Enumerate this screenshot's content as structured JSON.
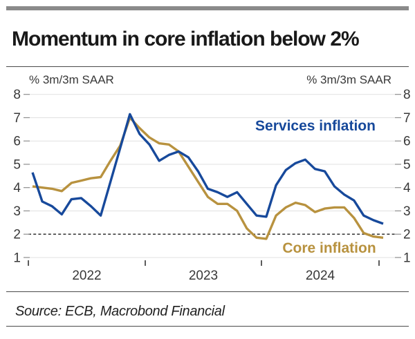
{
  "header": {
    "title": "Momentum in core inflation below 2%"
  },
  "footer": {
    "source": "Source: ECB, Macrobond Financial"
  },
  "colors": {
    "services_blue": "#17499b",
    "core_gold": "#b8923f",
    "gridline": "#e0e0e0",
    "dashed_line": "#1c1c1c",
    "tick_text": "#383838",
    "axis_tick_dash": "#8d8d8d",
    "x_tick": "#333333",
    "top_bar_gray": "#8a8a8a"
  },
  "chart_data": {
    "type": "line",
    "title": "Momentum in core inflation below 2%",
    "unit_label_left": "% 3m/3m SAAR",
    "unit_label_right": "% 3m/3m SAAR",
    "y_ticks": [
      1,
      2,
      3,
      4,
      5,
      6,
      7,
      8
    ],
    "ylim": [
      1,
      8
    ],
    "dashed_reference_y": 2,
    "grid": true,
    "x_tick_years": [
      "2022",
      "2023",
      "2024"
    ],
    "x_months": [
      "2022-01",
      "2022-02",
      "2022-03",
      "2022-04",
      "2022-05",
      "2022-06",
      "2022-07",
      "2022-08",
      "2022-09",
      "2022-10",
      "2022-11",
      "2022-12",
      "2023-01",
      "2023-02",
      "2023-03",
      "2023-04",
      "2023-05",
      "2023-06",
      "2023-07",
      "2023-08",
      "2023-09",
      "2023-10",
      "2023-11",
      "2023-12",
      "2024-01",
      "2024-02",
      "2024-03",
      "2024-04",
      "2024-05",
      "2024-06",
      "2024-07",
      "2024-08",
      "2024-09",
      "2024-10",
      "2024-11",
      "2024-12",
      "2025-01"
    ],
    "series": [
      {
        "name": "Services inflation",
        "color": "#17499b",
        "values": [
          4.65,
          3.4,
          3.2,
          2.85,
          3.5,
          3.55,
          3.2,
          2.8,
          4.25,
          5.7,
          7.15,
          6.3,
          5.85,
          5.15,
          5.4,
          5.55,
          5.3,
          4.7,
          3.95,
          3.8,
          3.6,
          3.8,
          3.3,
          2.8,
          2.75,
          4.1,
          4.75,
          5.05,
          5.2,
          4.8,
          4.7,
          4.05,
          3.7,
          3.45,
          2.8,
          2.6,
          2.45
        ]
      },
      {
        "name": "Core inflation",
        "color": "#b8923f",
        "values": [
          4.05,
          4.0,
          3.95,
          3.85,
          4.2,
          4.3,
          4.4,
          4.45,
          5.15,
          5.8,
          7.0,
          6.55,
          6.15,
          5.9,
          5.85,
          5.55,
          4.9,
          4.25,
          3.6,
          3.3,
          3.3,
          3.0,
          2.25,
          1.85,
          1.8,
          2.8,
          3.15,
          3.35,
          3.25,
          2.95,
          3.1,
          3.15,
          3.15,
          2.7,
          2.05,
          1.9,
          1.85
        ]
      }
    ],
    "annotations": [
      {
        "text": "Services inflation",
        "series": "Services inflation"
      },
      {
        "text": "Core inflation",
        "series": "Core inflation"
      }
    ],
    "legend_position": "in-plot-labels"
  }
}
